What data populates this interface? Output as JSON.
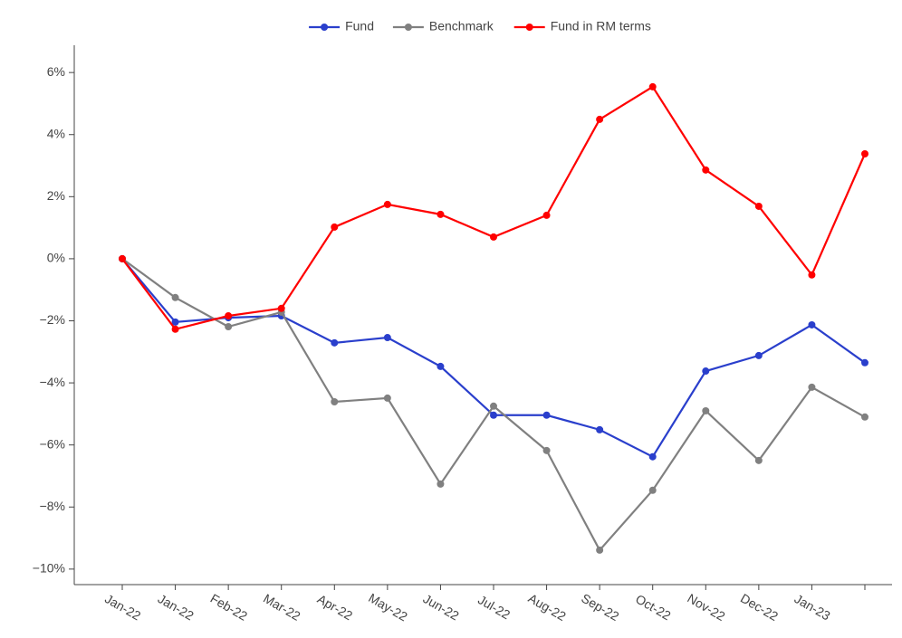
{
  "chart_data": {
    "type": "line",
    "categories": [
      "Jan-22",
      "Jan-22",
      "Feb-22",
      "Mar-22",
      "Apr-22",
      "May-22",
      "Jun-22",
      "Jul-22",
      "Aug-22",
      "Sep-22",
      "Oct-22",
      "Nov-22",
      "Dec-22",
      "Jan-23",
      null
    ],
    "series": [
      {
        "name": "Fund",
        "color": "#2a3fcc",
        "values": [
          0,
          -2.04,
          -1.9,
          -1.84,
          -2.71,
          -2.54,
          -3.47,
          -5.04,
          -5.04,
          -5.51,
          -6.38,
          -3.62,
          -3.12,
          -2.13,
          -3.35
        ]
      },
      {
        "name": "Benchmark",
        "color": "#808080",
        "values": [
          0,
          -1.25,
          -2.19,
          -1.72,
          -4.61,
          -4.49,
          -7.26,
          -4.75,
          -6.18,
          -9.39,
          -7.46,
          -4.9,
          -6.5,
          -4.14,
          -5.1
        ]
      },
      {
        "name": "Fund in RM terms",
        "color": "#ff0000",
        "values": [
          0,
          -2.27,
          -1.84,
          -1.6,
          1.02,
          1.75,
          1.43,
          0.7,
          1.4,
          4.49,
          5.54,
          2.86,
          1.69,
          -0.52,
          3.38
        ]
      }
    ],
    "ylim": [
      -10.5,
      6.5
    ],
    "yticks": [
      {
        "value": -10,
        "label": "−10%"
      },
      {
        "value": -8,
        "label": "−8%"
      },
      {
        "value": -6,
        "label": "−6%"
      },
      {
        "value": -4,
        "label": "−4%"
      },
      {
        "value": -2,
        "label": "−2%"
      },
      {
        "value": 0,
        "label": "0%"
      },
      {
        "value": 2,
        "label": "2%"
      },
      {
        "value": 4,
        "label": "4%"
      },
      {
        "value": 6,
        "label": "6%"
      }
    ],
    "legend": "top"
  }
}
